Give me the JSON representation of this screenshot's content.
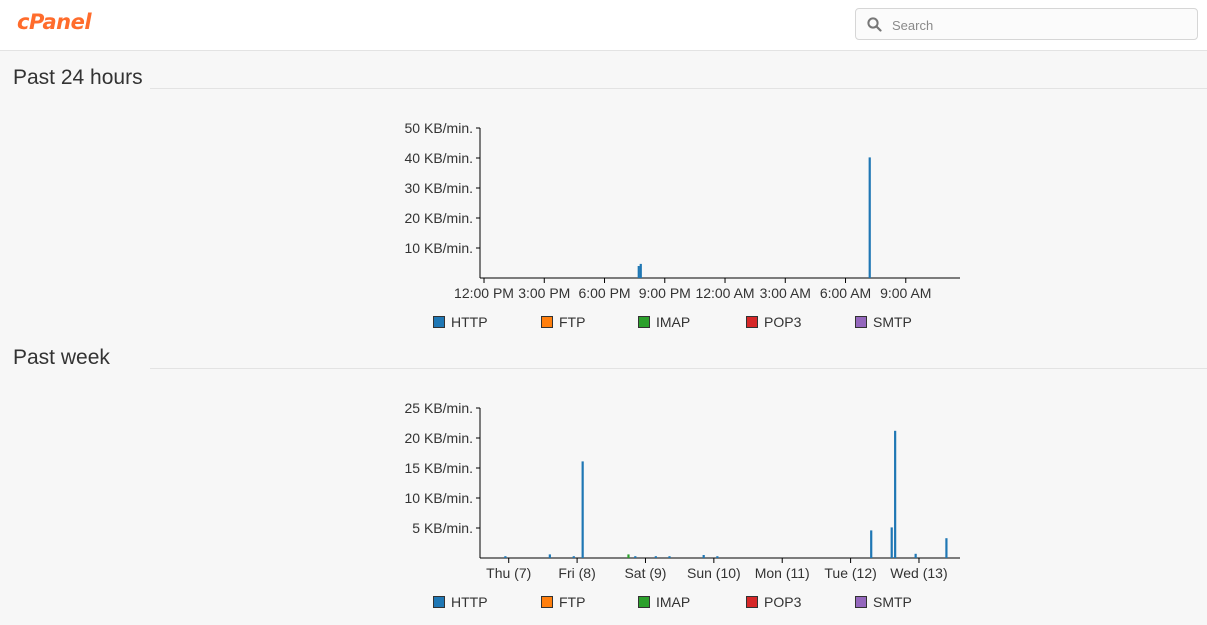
{
  "header": {
    "logo_text": "cPanel",
    "search_placeholder": "Search"
  },
  "legend": [
    {
      "label": "HTTP",
      "color": "#1f77b4"
    },
    {
      "label": "FTP",
      "color": "#ff7f0e"
    },
    {
      "label": "IMAP",
      "color": "#2ca02c"
    },
    {
      "label": "POP3",
      "color": "#d62728"
    },
    {
      "label": "SMTP",
      "color": "#9467bd"
    }
  ],
  "sections": [
    {
      "title": "Past 24 hours"
    },
    {
      "title": "Past week"
    }
  ],
  "chart_data": [
    {
      "type": "bar",
      "title": "Past 24 hours",
      "ylim": [
        0,
        50
      ],
      "y_ticks": [
        {
          "value": 50,
          "label": "50 KB/min."
        },
        {
          "value": 40,
          "label": "40 KB/min."
        },
        {
          "value": 30,
          "label": "30 KB/min."
        },
        {
          "value": 20,
          "label": "20 KB/min."
        },
        {
          "value": 10,
          "label": "10 KB/min."
        }
      ],
      "x_ticks": [
        "12:00 PM",
        "3:00 PM",
        "6:00 PM",
        "9:00 PM",
        "12:00 AM",
        "3:00 AM",
        "6:00 AM",
        "9:00 AM"
      ],
      "x_range_hours": [
        -0.2,
        23.7
      ],
      "series": [
        {
          "name": "HTTP",
          "points": [
            {
              "x": 7.7,
              "y": 4.0
            },
            {
              "x": 7.8,
              "y": 4.7
            },
            {
              "x": 19.2,
              "y": 40.2
            }
          ]
        }
      ]
    },
    {
      "type": "bar",
      "title": "Past week",
      "ylim": [
        0,
        25
      ],
      "y_ticks": [
        {
          "value": 25,
          "label": "25 KB/min."
        },
        {
          "value": 20,
          "label": "20 KB/min."
        },
        {
          "value": 15,
          "label": "15 KB/min."
        },
        {
          "value": 10,
          "label": "10 KB/min."
        },
        {
          "value": 5,
          "label": "5 KB/min."
        }
      ],
      "x_ticks": [
        "Thu (7)",
        "Fri (8)",
        "Sat (9)",
        "Sun (10)",
        "Mon (11)",
        "Tue (12)",
        "Wed (13)"
      ],
      "x_range_days": [
        -0.42,
        6.6
      ],
      "series": [
        {
          "name": "HTTP",
          "points": [
            {
              "x": -0.05,
              "y": 0.3
            },
            {
              "x": 0.6,
              "y": 0.6
            },
            {
              "x": 0.95,
              "y": 0.3
            },
            {
              "x": 1.08,
              "y": 16.1
            },
            {
              "x": 1.85,
              "y": 0.3
            },
            {
              "x": 2.15,
              "y": 0.3
            },
            {
              "x": 2.35,
              "y": 0.3
            },
            {
              "x": 2.85,
              "y": 0.5
            },
            {
              "x": 3.05,
              "y": 0.3
            },
            {
              "x": 5.3,
              "y": 4.6
            },
            {
              "x": 5.6,
              "y": 5.1
            },
            {
              "x": 5.65,
              "y": 21.2
            },
            {
              "x": 5.95,
              "y": 0.7
            },
            {
              "x": 6.4,
              "y": 3.3
            }
          ]
        },
        {
          "name": "IMAP",
          "points": [
            {
              "x": 1.75,
              "y": 0.6
            }
          ]
        }
      ]
    }
  ]
}
